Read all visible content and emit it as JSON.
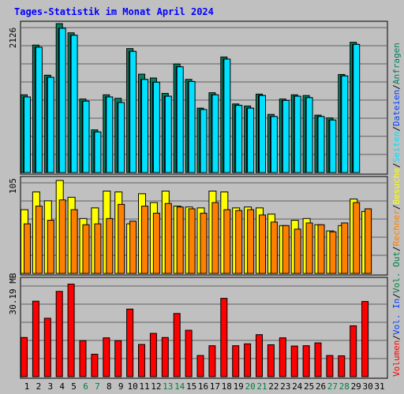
{
  "title": "Tages-Statistik im Monat April 2024",
  "colors": {
    "background": "#c0c0c0",
    "grid": "#606060",
    "weekday_label": "#000000",
    "weekend_label": "#008040",
    "anfragen": "#008060",
    "dateien": "#0040ff",
    "seiten": "#00e0ff",
    "besuche": "#ffff00",
    "rechner": "#ff8000",
    "volumen": "#ff0000",
    "title": "#0000ff"
  },
  "chart_data": [
    {
      "type": "bar",
      "panel": "top",
      "y_tick_label": "2126",
      "ylim": [
        0,
        2126
      ],
      "categories": [
        "1",
        "2",
        "3",
        "4",
        "5",
        "6",
        "7",
        "8",
        "9",
        "10",
        "11",
        "12",
        "13",
        "14",
        "15",
        "16",
        "17",
        "18",
        "19",
        "20",
        "21",
        "22",
        "23",
        "24",
        "25",
        "26",
        "27",
        "28",
        "29",
        "30"
      ],
      "series": [
        {
          "name": "Anfragen",
          "values": [
            1110,
            1820,
            1390,
            2126,
            1995,
            1050,
            610,
            1110,
            1060,
            1770,
            1405,
            1350,
            1130,
            1550,
            1330,
            920,
            1140,
            1650,
            980,
            950,
            1120,
            830,
            1050,
            1110,
            1100,
            820,
            780,
            1400,
            1860,
            0
          ]
        },
        {
          "name": "Dateien",
          "values": [
            1080,
            1790,
            1360,
            2060,
            1960,
            1020,
            580,
            1080,
            1000,
            1730,
            1330,
            1290,
            1090,
            1510,
            1300,
            900,
            1110,
            1620,
            960,
            920,
            1100,
            800,
            1030,
            1090,
            1070,
            800,
            750,
            1380,
            1830,
            0
          ]
        },
        {
          "name": "Seiten",
          "values": [
            1080,
            1790,
            1360,
            2060,
            1960,
            1020,
            580,
            1080,
            1000,
            1730,
            1330,
            1290,
            1090,
            1510,
            1300,
            900,
            1110,
            1620,
            960,
            920,
            1100,
            800,
            1030,
            1090,
            1070,
            800,
            750,
            1380,
            1830,
            0
          ]
        }
      ]
    },
    {
      "type": "bar",
      "panel": "middle",
      "y_tick_label": "105",
      "ylim": [
        0,
        105
      ],
      "categories": [
        "1",
        "2",
        "3",
        "4",
        "5",
        "6",
        "7",
        "8",
        "9",
        "10",
        "11",
        "12",
        "13",
        "14",
        "15",
        "16",
        "17",
        "18",
        "19",
        "20",
        "21",
        "22",
        "23",
        "24",
        "25",
        "26",
        "27",
        "28",
        "29",
        "30"
      ],
      "series": [
        {
          "name": "Besuche",
          "values": [
            72,
            92,
            82,
            105,
            86,
            62,
            74,
            93,
            92,
            56,
            90,
            80,
            93,
            76,
            75,
            74,
            93,
            92,
            74,
            75,
            74,
            67,
            54,
            60,
            62,
            55,
            48,
            54,
            84,
            70
          ]
        },
        {
          "name": "Rechner",
          "values": [
            56,
            76,
            60,
            83,
            72,
            55,
            56,
            62,
            78,
            59,
            76,
            68,
            79,
            75,
            73,
            68,
            80,
            72,
            71,
            72,
            66,
            58,
            54,
            50,
            57,
            55,
            47,
            57,
            80,
            73
          ]
        }
      ]
    },
    {
      "type": "bar",
      "panel": "bottom",
      "y_tick_label": "30.19 MB",
      "ylim": [
        0,
        30.19
      ],
      "categories": [
        "1",
        "2",
        "3",
        "4",
        "5",
        "6",
        "7",
        "8",
        "9",
        "10",
        "11",
        "12",
        "13",
        "14",
        "15",
        "16",
        "17",
        "18",
        "19",
        "20",
        "21",
        "22",
        "23",
        "24",
        "25",
        "26",
        "27",
        "28",
        "29",
        "30"
      ],
      "series": [
        {
          "name": "Volumen",
          "values": [
            12.4,
            23.9,
            18.5,
            27.0,
            29.3,
            11.4,
            7.1,
            12.3,
            11.4,
            21.4,
            10.2,
            13.7,
            12.4,
            20.0,
            14.7,
            6.7,
            9.8,
            24.8,
            9.8,
            10.4,
            13.3,
            10.1,
            12.3,
            9.7,
            9.8,
            10.7,
            6.7,
            6.6,
            16.1,
            23.8
          ]
        },
        {
          "name": "Vol. In",
          "values": [
            0,
            0,
            0,
            0,
            0,
            0,
            0,
            0,
            0,
            0,
            0,
            0,
            0,
            0,
            0,
            0,
            0,
            0,
            0,
            0,
            0,
            0,
            0,
            0,
            0,
            0,
            0,
            0,
            0,
            0
          ]
        },
        {
          "name": "Vol. Out",
          "values": [
            0,
            0,
            0,
            0,
            0,
            0,
            0,
            0,
            0,
            0,
            0,
            0,
            0,
            0,
            0,
            0,
            0,
            0,
            0,
            0,
            0,
            0,
            0,
            0,
            0,
            0,
            0,
            0,
            0,
            0
          ]
        }
      ]
    }
  ],
  "x_labels": [
    "1",
    "2",
    "3",
    "4",
    "5",
    "6",
    "7",
    "8",
    "9",
    "10",
    "11",
    "12",
    "13",
    "14",
    "15",
    "16",
    "17",
    "18",
    "19",
    "20",
    "21",
    "22",
    "23",
    "24",
    "25",
    "26",
    "27",
    "28",
    "29",
    "30",
    "31"
  ],
  "weekend_days": [
    "6",
    "7",
    "13",
    "14",
    "20",
    "21",
    "27",
    "28"
  ],
  "legend": {
    "volumen": "Volumen",
    "sep1": "/",
    "vol_in": "Vol. In",
    "sep2": "/",
    "vol_out": "Vol. Out",
    "sep3": "/",
    "rechner": "Rechner",
    "sep4": "/",
    "besuche": "Besuche",
    "sep5": "/",
    "seiten": "Seiten",
    "sep6": "/",
    "dateien": "Dateien",
    "sep7": "/",
    "anfragen": "Anfragen"
  }
}
